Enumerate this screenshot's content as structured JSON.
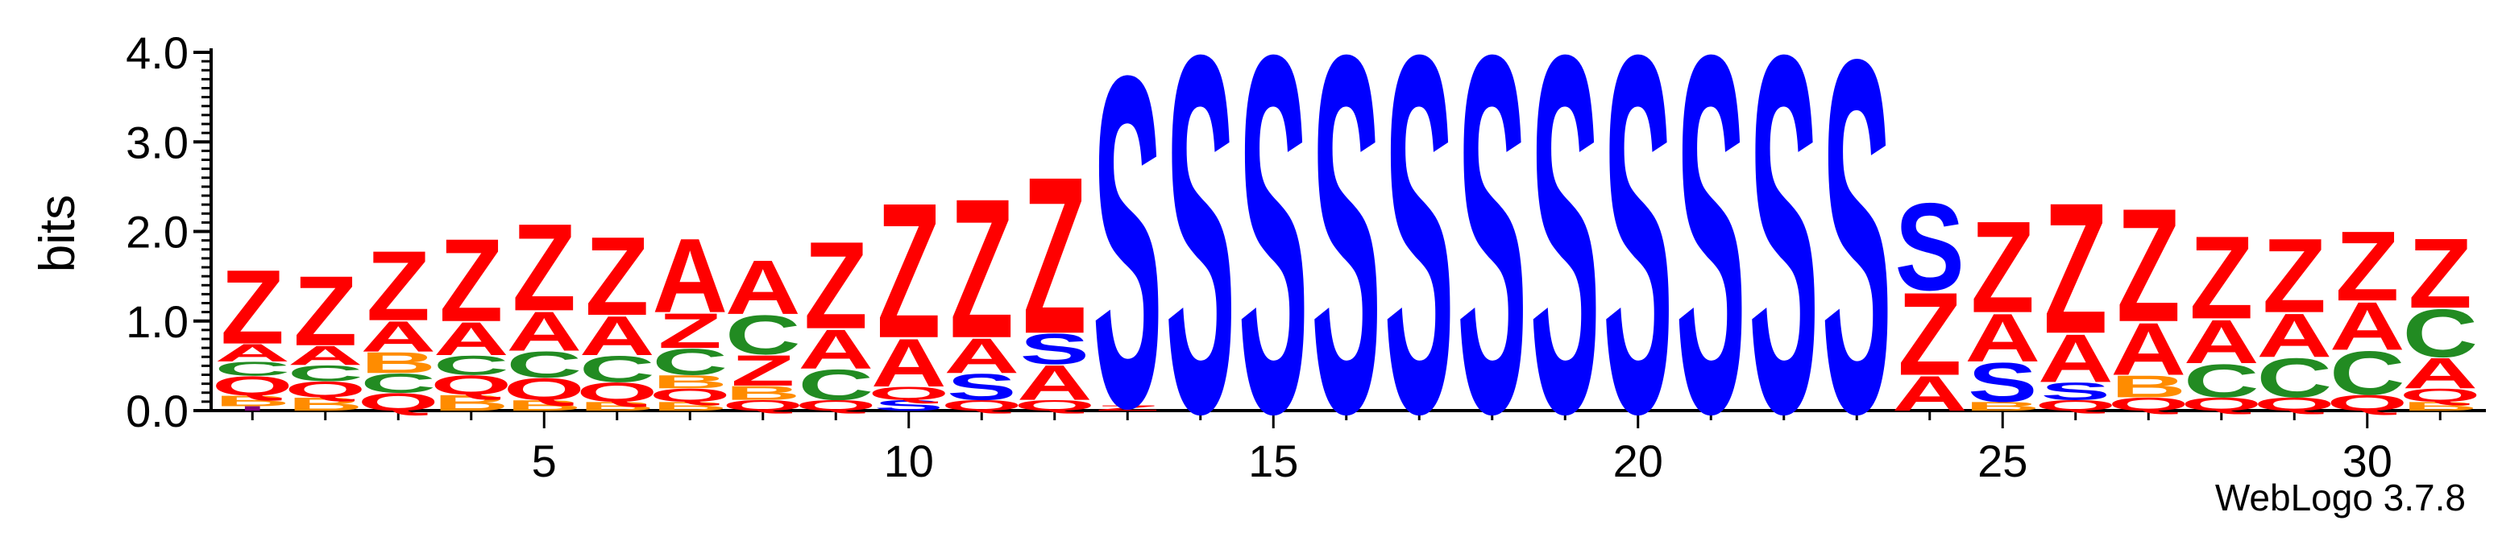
{
  "chart_data": {
    "type": "sequence-logo",
    "ylabel": "bits",
    "ylim": [
      0,
      4.0
    ],
    "yticks": [
      "0.0",
      "1.0",
      "2.0",
      "3.0",
      "4.0"
    ],
    "xlabeled_ticks": [
      5,
      10,
      15,
      20,
      25,
      30
    ],
    "n_positions": 31,
    "colors": {
      "Z": "#ff0000",
      "A": "#ff0000",
      "S": "#0000ff",
      "C": "#228b22",
      "Q": "#ff0000",
      "B": "#ff8c00",
      "I": "#800080",
      "D": "#ff0000"
    },
    "positions": [
      [
        [
          "I",
          0.05
        ],
        [
          "B",
          0.12
        ],
        [
          "Q",
          0.22
        ],
        [
          "C",
          0.16
        ],
        [
          "A",
          0.2
        ],
        [
          "Z",
          0.85
        ]
      ],
      [
        [
          "B",
          0.15
        ],
        [
          "Q",
          0.18
        ],
        [
          "C",
          0.18
        ],
        [
          "A",
          0.22
        ],
        [
          "Z",
          0.8
        ]
      ],
      [
        [
          "Q",
          0.2
        ],
        [
          "C",
          0.22
        ],
        [
          "B",
          0.24
        ],
        [
          "A",
          0.35
        ],
        [
          "Z",
          0.8
        ]
      ],
      [
        [
          "B",
          0.18
        ],
        [
          "Q",
          0.22
        ],
        [
          "C",
          0.22
        ],
        [
          "A",
          0.38
        ],
        [
          "Z",
          0.95
        ]
      ],
      [
        [
          "B",
          0.12
        ],
        [
          "Q",
          0.25
        ],
        [
          "C",
          0.3
        ],
        [
          "A",
          0.45
        ],
        [
          "Z",
          1.0
        ]
      ],
      [
        [
          "B",
          0.1
        ],
        [
          "Q",
          0.22
        ],
        [
          "C",
          0.3
        ],
        [
          "A",
          0.45
        ],
        [
          "Z",
          0.9
        ]
      ],
      [
        [
          "B",
          0.1
        ],
        [
          "Q",
          0.15
        ],
        [
          "B",
          0.15
        ],
        [
          "C",
          0.3
        ],
        [
          "Z",
          0.4
        ],
        [
          "A",
          0.85
        ]
      ],
      [
        [
          "Q",
          0.12
        ],
        [
          "B",
          0.16
        ],
        [
          "Z",
          0.35
        ],
        [
          "C",
          0.45
        ],
        [
          "A",
          0.62
        ]
      ],
      [
        [
          "Q",
          0.12
        ],
        [
          "C",
          0.35
        ],
        [
          "A",
          0.45
        ],
        [
          "Z",
          1.0
        ]
      ],
      [
        [
          "S",
          0.12
        ],
        [
          "Q",
          0.15
        ],
        [
          "A",
          0.55
        ],
        [
          "Z",
          1.55
        ]
      ],
      [
        [
          "Q",
          0.12
        ],
        [
          "S",
          0.3
        ],
        [
          "A",
          0.4
        ],
        [
          "Z",
          1.6
        ]
      ],
      [
        [
          "Q",
          0.12
        ],
        [
          "A",
          0.4
        ],
        [
          "S",
          0.35
        ],
        [
          "Z",
          1.8
        ]
      ],
      [
        [
          "Z",
          0.06
        ],
        [
          "S",
          3.8
        ]
      ],
      [
        [
          "S",
          4.1
        ]
      ],
      [
        [
          "S",
          4.1
        ]
      ],
      [
        [
          "S",
          4.1
        ]
      ],
      [
        [
          "S",
          4.1
        ]
      ],
      [
        [
          "S",
          4.1
        ]
      ],
      [
        [
          "S",
          4.1
        ]
      ],
      [
        [
          "S",
          4.1
        ]
      ],
      [
        [
          "S",
          4.1
        ]
      ],
      [
        [
          "S",
          4.1
        ]
      ],
      [
        [
          "S",
          4.05
        ]
      ],
      [
        [
          "A",
          0.4
        ],
        [
          "Z",
          0.95
        ],
        [
          "S",
          1.0
        ]
      ],
      [
        [
          "B",
          0.1
        ],
        [
          "S",
          0.45
        ],
        [
          "A",
          0.55
        ],
        [
          "Z",
          1.05
        ]
      ],
      [
        [
          "Q",
          0.12
        ],
        [
          "S",
          0.2
        ],
        [
          "A",
          0.55
        ],
        [
          "Z",
          1.5
        ]
      ],
      [
        [
          "Q",
          0.15
        ],
        [
          "B",
          0.25
        ],
        [
          "A",
          0.6
        ],
        [
          "Z",
          1.3
        ]
      ],
      [
        [
          "Q",
          0.15
        ],
        [
          "C",
          0.38
        ],
        [
          "A",
          0.5
        ],
        [
          "Z",
          0.95
        ]
      ],
      [
        [
          "Q",
          0.15
        ],
        [
          "C",
          0.45
        ],
        [
          "A",
          0.5
        ],
        [
          "Z",
          0.85
        ]
      ],
      [
        [
          "Q",
          0.18
        ],
        [
          "C",
          0.5
        ],
        [
          "A",
          0.55
        ],
        [
          "Z",
          0.8
        ]
      ],
      [
        [
          "B",
          0.1
        ],
        [
          "Q",
          0.15
        ],
        [
          "A",
          0.35
        ],
        [
          "C",
          0.55
        ],
        [
          "Z",
          0.8
        ]
      ]
    ]
  },
  "footer": {
    "label": "WebLogo 3.7.8"
  }
}
